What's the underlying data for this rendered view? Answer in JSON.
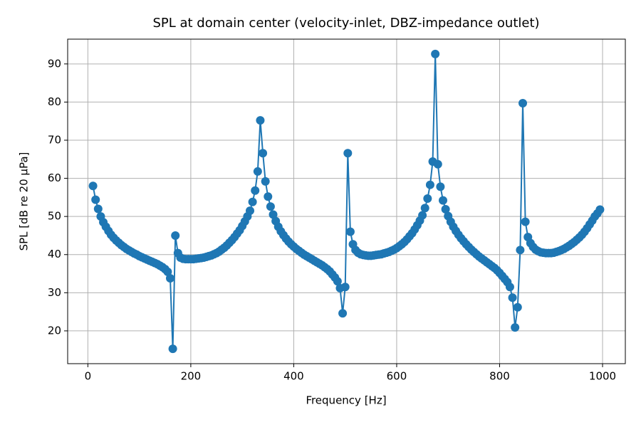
{
  "chart_data": {
    "type": "line",
    "title": "SPL at domain center (velocity-inlet, DBZ-impedance outlet)",
    "x_label": "Frequency [Hz]",
    "y_label": "SPL [dB re 20 µPa]",
    "x": [
      10,
      15,
      20,
      25,
      30,
      35,
      40,
      45,
      50,
      55,
      60,
      65,
      70,
      75,
      80,
      85,
      90,
      95,
      100,
      105,
      110,
      115,
      120,
      125,
      130,
      135,
      140,
      145,
      150,
      155,
      160,
      165,
      170,
      175,
      180,
      185,
      190,
      195,
      200,
      205,
      210,
      215,
      220,
      225,
      230,
      235,
      240,
      245,
      250,
      255,
      260,
      265,
      270,
      275,
      280,
      285,
      290,
      295,
      300,
      305,
      310,
      315,
      320,
      325,
      330,
      335,
      340,
      345,
      350,
      355,
      360,
      365,
      370,
      375,
      380,
      385,
      390,
      395,
      400,
      405,
      410,
      415,
      420,
      425,
      430,
      435,
      440,
      445,
      450,
      455,
      460,
      465,
      470,
      475,
      480,
      485,
      490,
      495,
      500,
      505,
      510,
      515,
      520,
      525,
      530,
      535,
      540,
      545,
      550,
      555,
      560,
      565,
      570,
      575,
      580,
      585,
      590,
      595,
      600,
      605,
      610,
      615,
      620,
      625,
      630,
      635,
      640,
      645,
      650,
      655,
      660,
      665,
      670,
      675,
      680,
      685,
      690,
      695,
      700,
      705,
      710,
      715,
      720,
      725,
      730,
      735,
      740,
      745,
      750,
      755,
      760,
      765,
      770,
      775,
      780,
      785,
      790,
      795,
      800,
      805,
      810,
      815,
      820,
      825,
      830,
      835,
      840,
      845,
      850,
      855,
      860,
      865,
      870,
      875,
      880,
      885,
      890,
      895,
      900,
      905,
      910,
      915,
      920,
      925,
      930,
      935,
      940,
      945,
      950,
      955,
      960,
      965,
      970,
      975,
      980,
      985,
      990,
      995
    ],
    "series": [
      {
        "color": "#1f77b4",
        "values": [
          58,
          54.4,
          52,
          50,
          48.5,
          47.3,
          46.2,
          45.2,
          44.4,
          43.7,
          43.1,
          42.5,
          42,
          41.5,
          41.1,
          40.7,
          40.3,
          40,
          39.6,
          39.3,
          39,
          38.7,
          38.4,
          38.1,
          37.8,
          37.5,
          37.1,
          36.7,
          36.2,
          35.5,
          33.8,
          15.3,
          45,
          40.4,
          39.2,
          38.9,
          38.8,
          38.8,
          38.8,
          38.8,
          38.9,
          39,
          39.1,
          39.2,
          39.4,
          39.6,
          39.8,
          40.1,
          40.4,
          40.8,
          41.3,
          41.8,
          42.4,
          43.1,
          43.8,
          44.6,
          45.5,
          46.4,
          47.5,
          48.7,
          50,
          51.5,
          53.8,
          56.8,
          61.8,
          75.2,
          66.6,
          59.2,
          55.2,
          52.6,
          50.5,
          48.8,
          47.3,
          46.1,
          45.1,
          44.2,
          43.4,
          42.7,
          42.1,
          41.5,
          41,
          40.5,
          40,
          39.6,
          39.2,
          38.8,
          38.4,
          38,
          37.6,
          37.2,
          36.7,
          36.2,
          35.6,
          34.8,
          34,
          33,
          31.2,
          24.6,
          31.5,
          66.6,
          46,
          42.7,
          41.2,
          40.5,
          40.1,
          39.9,
          39.8,
          39.7,
          39.7,
          39.8,
          39.9,
          40,
          40.1,
          40.3,
          40.5,
          40.7,
          41,
          41.3,
          41.7,
          42.2,
          42.7,
          43.3,
          44,
          44.8,
          45.6,
          46.6,
          47.7,
          48.9,
          50.3,
          52.2,
          54.7,
          58.3,
          64.4,
          92.6,
          63.7,
          57.8,
          54.2,
          51.9,
          50.1,
          48.6,
          47.3,
          46.2,
          45.2,
          44.3,
          43.5,
          42.7,
          42,
          41.3,
          40.7,
          40.1,
          39.5,
          39,
          38.5,
          38,
          37.5,
          37,
          36.5,
          35.9,
          35.2,
          34.4,
          33.6,
          32.8,
          31.5,
          28.7,
          20.9,
          26.2,
          41.2,
          79.7,
          48.6,
          44.6,
          43,
          42,
          41.3,
          40.9,
          40.6,
          40.5,
          40.4,
          40.4,
          40.4,
          40.5,
          40.7,
          40.9,
          41.2,
          41.5,
          41.9,
          42.3,
          42.8,
          43.3,
          43.9,
          44.5,
          45.2,
          46,
          46.9,
          47.9,
          48.9,
          50,
          50.8,
          51.8
        ]
      }
    ],
    "xlim": [
      -39.25,
      1044.25
    ],
    "ylim": [
      11.4,
      96.5
    ],
    "xticks": [
      0,
      200,
      400,
      600,
      800,
      1000
    ],
    "yticks": [
      20,
      30,
      40,
      50,
      60,
      70,
      80,
      90
    ],
    "grid": true,
    "markers": true
  }
}
